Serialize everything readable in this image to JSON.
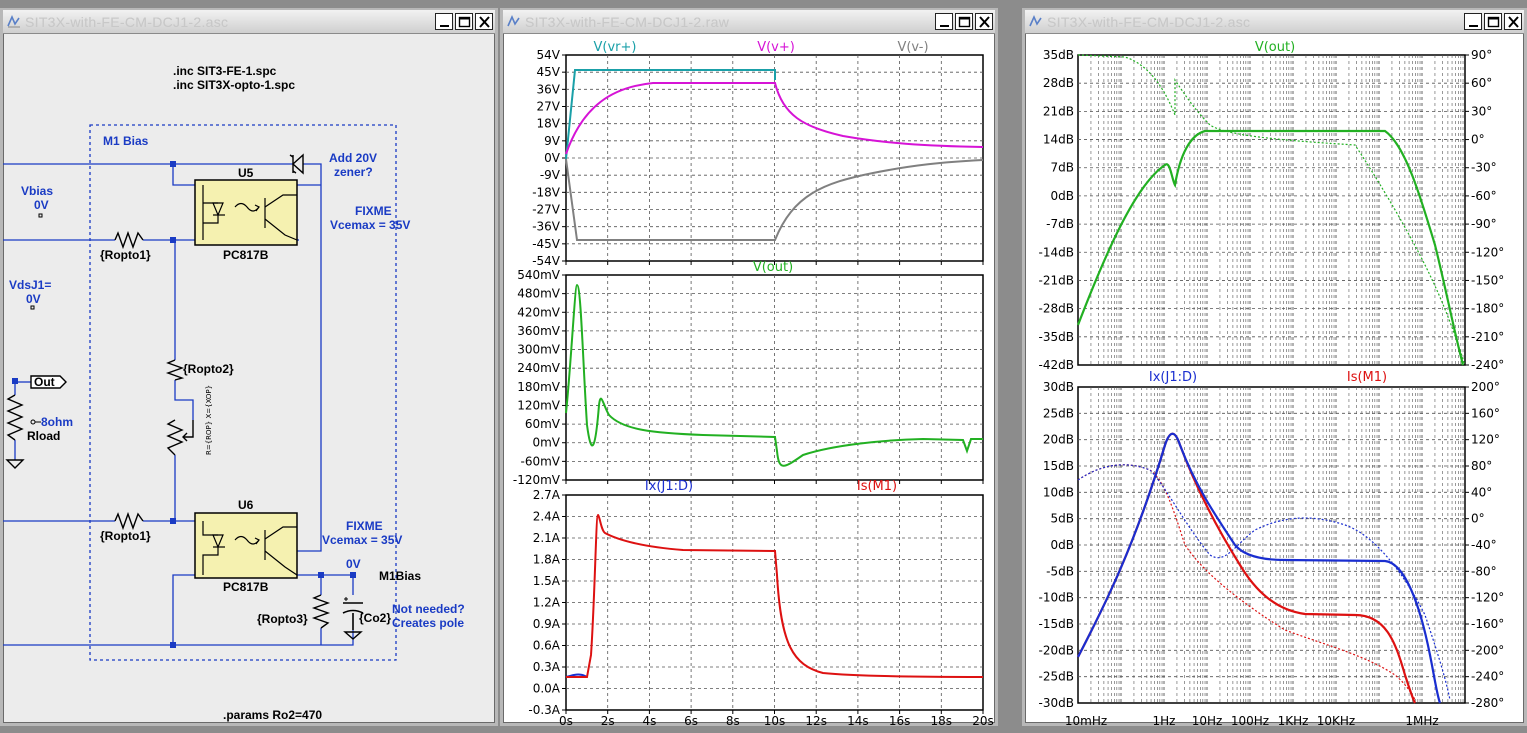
{
  "colors": {
    "wire_blue": "#1a3bc4",
    "component": "#7a3b1a",
    "opto_fill": "#f5f1b0",
    "trace_cyan": "#1aa0a8",
    "trace_magenta": "#d613d6",
    "trace_gray": "#808080",
    "trace_green": "#22b022",
    "trace_blue": "#1a2ed0",
    "trace_red": "#dd1111"
  },
  "schematic": {
    "title": "SIT3X-with-FE-CM-DCJ1-2.asc",
    "directives": {
      "inc1": ".inc SIT3-FE-1.spc",
      "inc2": ".inc SIT3X-opto-1.spc",
      "params": ".params Ro2=470"
    },
    "labels": {
      "m1bias_box": "M1 Bias",
      "vbias": "Vbias",
      "vbias_val": "0V",
      "vdsj1": "VdsJ1=",
      "vdsj1_val": "0V",
      "out": "Out",
      "rload_val": "8ohm",
      "rload": "Rload",
      "u5": "U5",
      "u6": "U6",
      "pc817b_1": "PC817B",
      "pc817b_2": "PC817B",
      "add_zener_1": "Add 20V",
      "add_zener_2": "zener?",
      "fixme1": "FIXME",
      "vcemax1": "Vcemax = 35V",
      "fixme2": "FIXME",
      "vcemax2": "Vcemax = 35V",
      "ropto1_a": "{Ropto1}",
      "ropto1_b": "{Ropto1}",
      "ropto2": "{Ropto2}",
      "ropto3": "{Ropto3}",
      "co2": "{Co2}",
      "pot_value": "R={ROP} X={XOP}",
      "node_0v": "0V",
      "m1bias_node": "M1Bias",
      "not_needed_1": "Not needed?",
      "not_needed_2": "Creates pole"
    }
  },
  "transient": {
    "title": "SIT3X-with-FE-CM-DCJ1-2.raw",
    "pane1": {
      "traces": [
        "V(vr+)",
        "V(v+)",
        "V(v-)"
      ],
      "yticks": [
        "54V",
        "45V",
        "36V",
        "27V",
        "18V",
        "9V",
        "0V",
        "-9V",
        "-18V",
        "-27V",
        "-36V",
        "-45V",
        "-54V"
      ]
    },
    "pane2": {
      "traces": [
        "V(out)"
      ],
      "yticks": [
        "540mV",
        "480mV",
        "420mV",
        "360mV",
        "300mV",
        "240mV",
        "180mV",
        "120mV",
        "60mV",
        "0mV",
        "-60mV",
        "-120mV"
      ]
    },
    "pane3": {
      "traces": [
        "Ix(J1:D)",
        "Is(M1)"
      ],
      "yticks": [
        "2.7A",
        "2.4A",
        "2.1A",
        "1.8A",
        "1.5A",
        "1.2A",
        "0.9A",
        "0.6A",
        "0.3A",
        "0.0A",
        "-0.3A"
      ]
    },
    "xticks": [
      "0s",
      "2s",
      "4s",
      "6s",
      "8s",
      "10s",
      "12s",
      "14s",
      "16s",
      "18s",
      "20s"
    ]
  },
  "ac": {
    "title": "SIT3X-with-FE-CM-DCJ1-2.asc",
    "pane1": {
      "traces": [
        "V(out)"
      ],
      "yticks_left": [
        "35dB",
        "28dB",
        "21dB",
        "14dB",
        "7dB",
        "0dB",
        "-7dB",
        "-14dB",
        "-21dB",
        "-28dB",
        "-35dB",
        "-42dB"
      ],
      "yticks_right": [
        "90°",
        "60°",
        "30°",
        "0°",
        "-30°",
        "-60°",
        "-90°",
        "-120°",
        "-150°",
        "-180°",
        "-210°",
        "-240°"
      ]
    },
    "pane2": {
      "traces": [
        "Ix(J1:D)",
        "Is(M1)"
      ],
      "yticks_left": [
        "30dB",
        "25dB",
        "20dB",
        "15dB",
        "10dB",
        "5dB",
        "0dB",
        "-5dB",
        "-10dB",
        "-15dB",
        "-20dB",
        "-25dB",
        "-30dB"
      ],
      "yticks_right": [
        "200°",
        "160°",
        "120°",
        "80°",
        "40°",
        "0°",
        "-40°",
        "-80°",
        "-120°",
        "-160°",
        "-200°",
        "-240°",
        "-280°"
      ]
    },
    "xticks": [
      "10mHz",
      "1Hz",
      "10Hz",
      "100Hz",
      "1KHz",
      "10KHz",
      "1MHz"
    ]
  }
}
